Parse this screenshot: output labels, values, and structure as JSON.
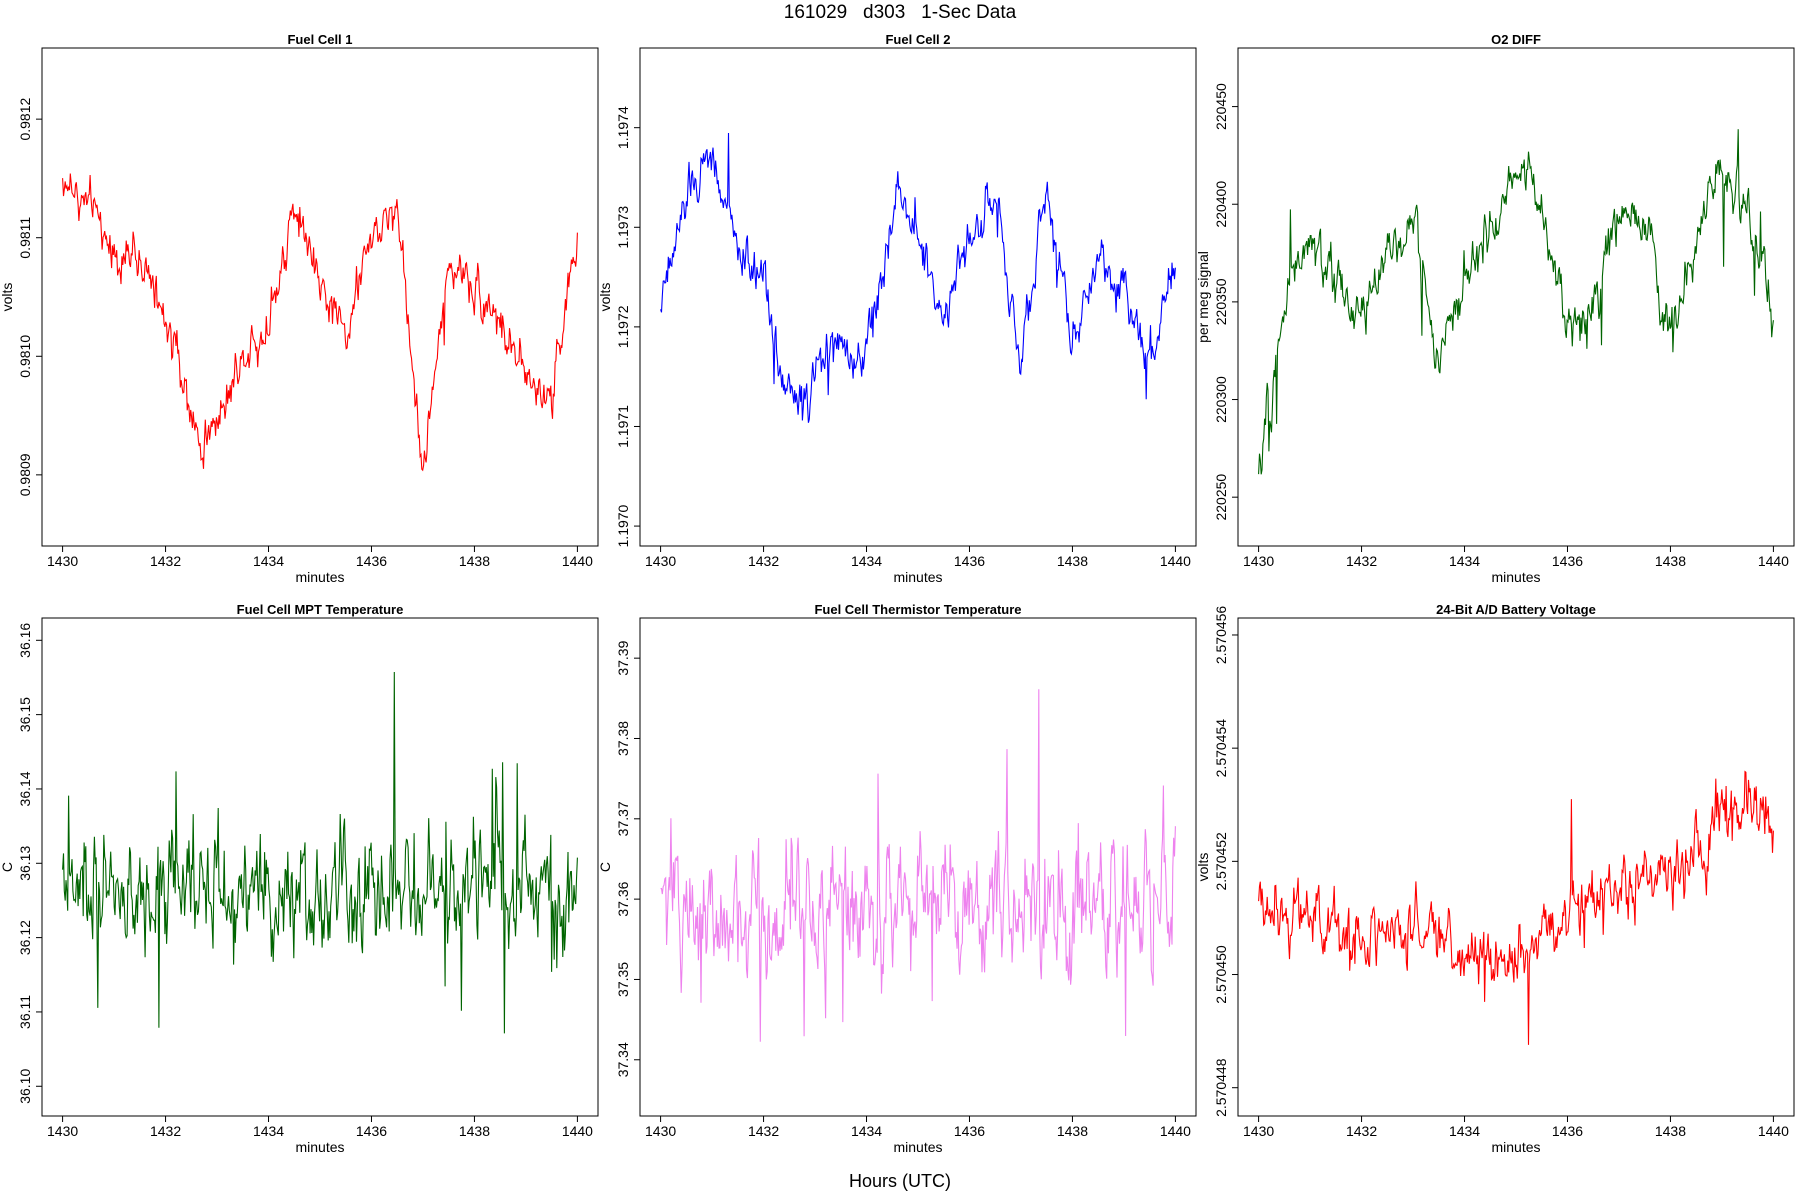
{
  "figure": {
    "title": "161029   d303   1-Sec Data",
    "xlabel": "Hours (UTC)"
  },
  "chart_data": [
    {
      "type": "line",
      "title": "Fuel Cell 1",
      "xlabel": "minutes",
      "ylabel": "volts",
      "color": "#ff0000",
      "xlim": [
        1429.6,
        1440.4
      ],
      "ylim": [
        0.98084,
        0.98126
      ],
      "xticks": [
        1430,
        1432,
        1434,
        1436,
        1438,
        1440
      ],
      "xtick_labels": [
        "1430",
        "1432",
        "1434",
        "1436",
        "1438",
        "1440"
      ],
      "yticks": [
        0.9809,
        0.981,
        0.9811,
        0.9812
      ],
      "ytick_labels": [
        "0.9809",
        "0.9810",
        "0.9811",
        "0.9812"
      ],
      "x": [
        1430,
        1430.5,
        1431,
        1431.5,
        1432,
        1432.4,
        1432.7,
        1433,
        1433.5,
        1434,
        1434.5,
        1435,
        1435.5,
        1436,
        1436.5,
        1437,
        1437.5,
        1438,
        1438.5,
        1439,
        1439.5,
        1440
      ],
      "values": [
        0.98115,
        0.98113,
        0.98109,
        0.98108,
        0.98103,
        0.98097,
        0.98092,
        0.98095,
        0.981,
        0.98103,
        0.98113,
        0.98106,
        0.98102,
        0.9811,
        0.98113,
        0.9809,
        0.98108,
        0.98106,
        0.98103,
        0.98098,
        0.98097,
        0.9811
      ]
    },
    {
      "type": "line",
      "title": "Fuel Cell 2",
      "xlabel": "minutes",
      "ylabel": "volts",
      "color": "#0000ff",
      "xlim": [
        1429.6,
        1440.4
      ],
      "ylim": [
        1.19698,
        1.19748
      ],
      "xticks": [
        1430,
        1432,
        1434,
        1436,
        1438,
        1440
      ],
      "xtick_labels": [
        "1430",
        "1432",
        "1434",
        "1436",
        "1438",
        "1440"
      ],
      "yticks": [
        1.197,
        1.1971,
        1.1972,
        1.1973,
        1.1974
      ],
      "ytick_labels": [
        "1.1970",
        "1.1971",
        "1.1972",
        "1.1973",
        "1.1974"
      ],
      "x": [
        1430,
        1430.5,
        1431,
        1431.5,
        1432,
        1432.4,
        1432.8,
        1433.3,
        1433.8,
        1434.2,
        1434.6,
        1435,
        1435.5,
        1436,
        1436.5,
        1437,
        1437.5,
        1438,
        1438.5,
        1439,
        1439.5,
        1440
      ],
      "values": [
        1.19722,
        1.19733,
        1.19737,
        1.19728,
        1.19725,
        1.19714,
        1.19712,
        1.19719,
        1.19716,
        1.19722,
        1.19734,
        1.19729,
        1.19721,
        1.19729,
        1.19733,
        1.19716,
        1.19735,
        1.19718,
        1.19727,
        1.19724,
        1.19717,
        1.19727
      ]
    },
    {
      "type": "line",
      "title": "O2 DIFF",
      "xlabel": "minutes",
      "ylabel": "per meg signal",
      "color": "#006400",
      "xlim": [
        1429.6,
        1440.4
      ],
      "ylim": [
        220225,
        220480
      ],
      "xticks": [
        1430,
        1432,
        1434,
        1436,
        1438,
        1440
      ],
      "xtick_labels": [
        "1430",
        "1432",
        "1434",
        "1436",
        "1438",
        "1440"
      ],
      "yticks": [
        220250,
        220300,
        220350,
        220400,
        220450
      ],
      "ytick_labels": [
        "220250",
        "220300",
        "220350",
        "220400",
        "220450"
      ],
      "x": [
        1430,
        1430.3,
        1430.6,
        1431,
        1431.5,
        1432,
        1432.5,
        1433,
        1433.5,
        1434,
        1434.5,
        1435,
        1435.5,
        1436,
        1436.5,
        1437,
        1437.5,
        1438,
        1438.5,
        1439,
        1439.5,
        1440
      ],
      "values": [
        220255,
        220310,
        220360,
        220380,
        220360,
        220345,
        220370,
        220395,
        220320,
        220360,
        220385,
        220420,
        220400,
        220335,
        220350,
        220395,
        220390,
        220330,
        220380,
        220420,
        220395,
        220340
      ]
    },
    {
      "type": "line",
      "title": "Fuel Cell MPT Temperature",
      "xlabel": "minutes",
      "ylabel": "C",
      "color": "#006400",
      "xlim": [
        1429.6,
        1440.4
      ],
      "ylim": [
        36.096,
        36.163
      ],
      "xticks": [
        1430,
        1432,
        1434,
        1436,
        1438,
        1440
      ],
      "xtick_labels": [
        "1430",
        "1432",
        "1434",
        "1436",
        "1438",
        "1440"
      ],
      "yticks": [
        36.1,
        36.11,
        36.12,
        36.13,
        36.14,
        36.15,
        36.16
      ],
      "ytick_labels": [
        "36.10",
        "36.11",
        "36.12",
        "36.13",
        "36.14",
        "36.15",
        "36.16"
      ],
      "x": [
        1430,
        1432,
        1434,
        1436,
        1438,
        1440
      ],
      "values": [
        36.126,
        36.126,
        36.126,
        36.126,
        36.126,
        36.126
      ]
    },
    {
      "type": "line",
      "title": "Fuel Cell Thermistor Temperature",
      "xlabel": "minutes",
      "ylabel": "C",
      "color": "#ee82ee",
      "xlim": [
        1429.6,
        1440.4
      ],
      "ylim": [
        37.333,
        37.395
      ],
      "xticks": [
        1430,
        1432,
        1434,
        1436,
        1438,
        1440
      ],
      "xtick_labels": [
        "1430",
        "1432",
        "1434",
        "1436",
        "1438",
        "1440"
      ],
      "yticks": [
        37.34,
        37.35,
        37.36,
        37.37,
        37.38,
        37.39
      ],
      "ytick_labels": [
        "37.34",
        "37.35",
        "37.36",
        "37.37",
        "37.38",
        "37.39"
      ],
      "x": [
        1430,
        1432,
        1434,
        1436,
        1438,
        1440
      ],
      "values": [
        37.359,
        37.359,
        37.359,
        37.359,
        37.359,
        37.359
      ]
    },
    {
      "type": "line",
      "title": "24-Bit A/D Battery Voltage",
      "xlabel": "minutes",
      "ylabel": "volts",
      "color": "#ff0000",
      "xlim": [
        1429.6,
        1440.4
      ],
      "ylim": [
        2.5704475,
        2.5704563
      ],
      "xticks": [
        1430,
        1432,
        1434,
        1436,
        1438,
        1440
      ],
      "xtick_labels": [
        "1430",
        "1432",
        "1434",
        "1436",
        "1438",
        "1440"
      ],
      "yticks": [
        2.570448,
        2.57045,
        2.570452,
        2.570454,
        2.570456
      ],
      "ytick_labels": [
        "2.570448",
        "2.570450",
        "2.570452",
        "2.570454",
        "2.570456"
      ],
      "x": [
        1430,
        1431,
        1432,
        1433,
        1434,
        1435,
        1436,
        1437,
        1438,
        1438.5,
        1439,
        1439.5,
        1440
      ],
      "values": [
        2.5704512,
        2.5704512,
        2.5704505,
        2.5704508,
        2.5704504,
        2.5704502,
        2.5704512,
        2.5704515,
        2.5704518,
        2.570452,
        2.5704528,
        2.570453,
        2.5704525
      ]
    }
  ]
}
